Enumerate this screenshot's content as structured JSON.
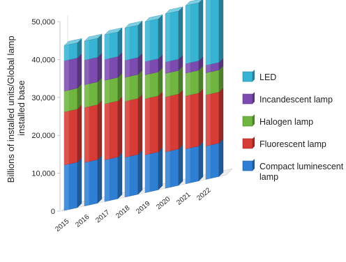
{
  "chart_data": {
    "type": "bar",
    "stacked": true,
    "three_d": true,
    "title": "",
    "xlabel": "",
    "ylabel_lines": [
      "Billions of installed units/Global lamp",
      "installed base"
    ],
    "ylim": [
      0,
      50000
    ],
    "yticks": [
      0,
      10000,
      20000,
      30000,
      40000,
      50000
    ],
    "ytick_labels": [
      "0",
      "10,000",
      "20,000",
      "30,000",
      "40,000",
      "50,000"
    ],
    "grid": false,
    "legend_position": "right",
    "categories": [
      "2015",
      "2016",
      "2017",
      "2018",
      "2019",
      "2020",
      "2021",
      "2022"
    ],
    "series": [
      {
        "name": "Compact luminescent lamp",
        "legend_lines": [
          "Compact luminescent",
          "lamp"
        ],
        "color": "#2e7fd4",
        "values": [
          12000,
          11500,
          11000,
          10500,
          10000,
          9600,
          9200,
          8800
        ]
      },
      {
        "name": "Fluorescent lamp",
        "legend_lines": [
          "Fluorescent lamp"
        ],
        "color": "#d63b36",
        "values": [
          14000,
          14500,
          14800,
          14800,
          14800,
          14500,
          14000,
          13500
        ]
      },
      {
        "name": "Halogen lamp",
        "legend_lines": [
          "Halogen lamp"
        ],
        "color": "#6fb53f",
        "values": [
          5500,
          6000,
          6200,
          6300,
          6300,
          6200,
          6000,
          5800
        ]
      },
      {
        "name": "Incandescent lamp",
        "legend_lines": [
          "Incandescent lamp"
        ],
        "color": "#7c4bb0",
        "values": [
          8000,
          6500,
          5500,
          4500,
          3500,
          3000,
          2500,
          2000
        ]
      },
      {
        "name": "LED",
        "legend_lines": [
          "LED"
        ],
        "color": "#37b3d3",
        "values": [
          4000,
          5000,
          6500,
          8500,
          10500,
          12700,
          15300,
          17900
        ]
      }
    ],
    "legend_order": [
      "LED",
      "Incandescent lamp",
      "Halogen lamp",
      "Fluorescent lamp",
      "Compact luminescent lamp"
    ]
  }
}
